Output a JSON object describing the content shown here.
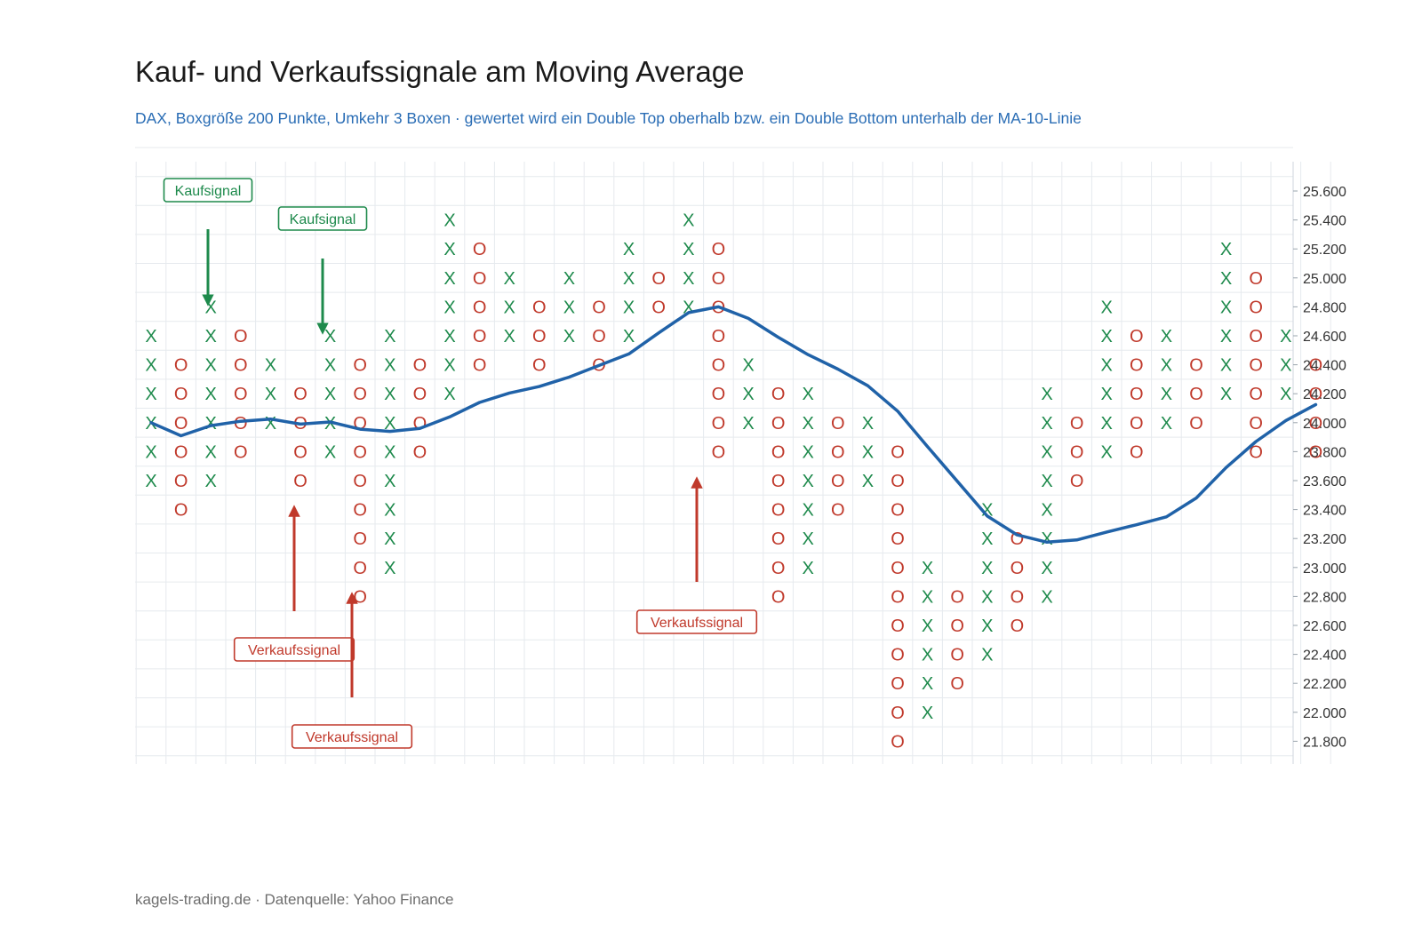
{
  "header": {
    "title": "Kauf- und Verkaufssignale am Moving Average",
    "subtitle": "DAX, Boxgröße 200 Punkte, Umkehr 3 Boxen · gewertet wird ein Double Top oberhalb bzw. ein Double Bottom unterhalb der MA-10-Linie"
  },
  "footer": {
    "source": "kagels-trading.de · Datenquelle: Yahoo Finance"
  },
  "colors": {
    "x_mark": "#1e8a4c",
    "o_mark": "#c0392b",
    "ma_line": "#2062a8",
    "grid": "#e6eaee",
    "buy": "#1e8a4c",
    "sell": "#c0392b"
  },
  "chart_data": {
    "type": "point-and-figure",
    "box_size": 200,
    "reversal_boxes": 3,
    "x_symbol": "X",
    "o_symbol": "O",
    "ylim": [
      21800,
      25600
    ],
    "y_ticks": [
      "25.600",
      "25.400",
      "25.200",
      "25.000",
      "24.800",
      "24.600",
      "24.400",
      "24.200",
      "24.000",
      "23.800",
      "23.600",
      "23.400",
      "23.200",
      "23.000",
      "22.800",
      "22.600",
      "22.400",
      "22.200",
      "22.000",
      "21.800"
    ],
    "grid": true,
    "columns": [
      {
        "type": "X",
        "low": 23600,
        "high": 24600
      },
      {
        "type": "O",
        "low": 23400,
        "high": 24400
      },
      {
        "type": "X",
        "low": 23600,
        "high": 24800
      },
      {
        "type": "O",
        "low": 23800,
        "high": 24600
      },
      {
        "type": "X",
        "low": 24000,
        "high": 24400
      },
      {
        "type": "O",
        "low": 23600,
        "high": 24200
      },
      {
        "type": "X",
        "low": 23800,
        "high": 24600
      },
      {
        "type": "O",
        "low": 22800,
        "high": 24400
      },
      {
        "type": "X",
        "low": 23000,
        "high": 24600
      },
      {
        "type": "O",
        "low": 23800,
        "high": 24400
      },
      {
        "type": "X",
        "low": 24200,
        "high": 25400
      },
      {
        "type": "O",
        "low": 24400,
        "high": 25200
      },
      {
        "type": "X",
        "low": 24600,
        "high": 25000
      },
      {
        "type": "O",
        "low": 24400,
        "high": 24800
      },
      {
        "type": "X",
        "low": 24600,
        "high": 25000
      },
      {
        "type": "O",
        "low": 24400,
        "high": 24800
      },
      {
        "type": "X",
        "low": 24600,
        "high": 25200
      },
      {
        "type": "O",
        "low": 24800,
        "high": 25000
      },
      {
        "type": "X",
        "low": 24800,
        "high": 25400
      },
      {
        "type": "O",
        "low": 23800,
        "high": 25200
      },
      {
        "type": "X",
        "low": 24000,
        "high": 24400
      },
      {
        "type": "O",
        "low": 22800,
        "high": 24200
      },
      {
        "type": "X",
        "low": 23000,
        "high": 24200
      },
      {
        "type": "O",
        "low": 23400,
        "high": 24000
      },
      {
        "type": "X",
        "low": 23600,
        "high": 24000
      },
      {
        "type": "O",
        "low": 21800,
        "high": 23800
      },
      {
        "type": "X",
        "low": 22000,
        "high": 23000
      },
      {
        "type": "O",
        "low": 22200,
        "high": 22800
      },
      {
        "type": "X",
        "low": 22400,
        "high": 23400
      },
      {
        "type": "O",
        "low": 22600,
        "high": 23200
      },
      {
        "type": "X",
        "low": 22800,
        "high": 24200
      },
      {
        "type": "O",
        "low": 23600,
        "high": 24000
      },
      {
        "type": "X",
        "low": 23800,
        "high": 24800
      },
      {
        "type": "O",
        "low": 23800,
        "high": 24600
      },
      {
        "type": "X",
        "low": 24000,
        "high": 24600
      },
      {
        "type": "O",
        "low": 24000,
        "high": 24400
      },
      {
        "type": "X",
        "low": 24200,
        "high": 25200
      },
      {
        "type": "O",
        "low": 23800,
        "high": 25000
      },
      {
        "type": "X",
        "low": 24200,
        "high": 24600
      },
      {
        "type": "O",
        "low": 23800,
        "high": 24400
      }
    ],
    "moving_average": {
      "period": 10,
      "values": [
        24000,
        23910,
        23980,
        24010,
        24025,
        23990,
        24005,
        23955,
        23940,
        23960,
        24040,
        24140,
        24205,
        24250,
        24315,
        24395,
        24475,
        24620,
        24760,
        24800,
        24720,
        24590,
        24470,
        24370,
        24255,
        24080,
        23835,
        23595,
        23355,
        23225,
        23175,
        23190,
        23245,
        23295,
        23350,
        23480,
        23690,
        23870,
        24015,
        24125
      ]
    },
    "signals": [
      {
        "label": "Kaufsignal",
        "kind": "buy",
        "column": 3,
        "price": 24800
      },
      {
        "label": "Kaufsignal",
        "kind": "buy",
        "column": 7,
        "price": 24600
      },
      {
        "label": "Verkaufssignal",
        "kind": "sell",
        "column": 6,
        "price": 23600
      },
      {
        "label": "Verkaufssignal",
        "kind": "sell",
        "column": 8,
        "price": 22800
      },
      {
        "label": "Verkaufssignal",
        "kind": "sell",
        "column": 20,
        "price": 23800
      }
    ]
  }
}
